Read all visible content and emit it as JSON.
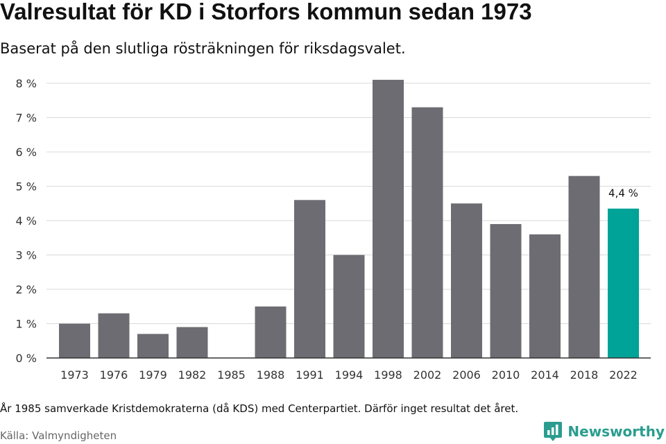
{
  "header": {
    "title": "Valresultat för KD i Storfors kommun sedan 1973",
    "subtitle": "Baserat på den slutliga rösträkningen för riksdagsvalet."
  },
  "footer": {
    "footnote": "År 1985 samverkade Kristdemokraterna (då KDS) med Centerpartiet. Därför inget resultat det året.",
    "source": "Källa: Valmyndigheten",
    "brand": "Newsworthy",
    "brand_icon": "newsworthy-logo-icon"
  },
  "colors": {
    "bar": "#6d6c72",
    "highlight": "#00a397",
    "grid": "#d9d9d9",
    "axis": "#333333",
    "brand": "#2a9d8f"
  },
  "chart_data": {
    "type": "bar",
    "title": "Valresultat för KD i Storfors kommun sedan 1973",
    "subtitle": "Baserat på den slutliga rösträkningen för riksdagsvalet.",
    "xlabel": "",
    "ylabel": "",
    "categories": [
      "1973",
      "1976",
      "1979",
      "1982",
      "1985",
      "1988",
      "1991",
      "1994",
      "1998",
      "2002",
      "2006",
      "2010",
      "2014",
      "2018",
      "2022"
    ],
    "values": [
      1.0,
      1.3,
      0.7,
      0.9,
      null,
      1.5,
      4.6,
      3.0,
      8.1,
      7.3,
      4.5,
      3.9,
      3.6,
      5.3,
      4.35
    ],
    "highlight_index": 14,
    "data_labels": [
      {
        "index": 14,
        "text": "4,4 %"
      }
    ],
    "ylim": [
      0,
      8
    ],
    "yticks": [
      0,
      1,
      2,
      3,
      4,
      5,
      6,
      7,
      8
    ],
    "ytick_labels": [
      "0 %",
      "1 %",
      "2 %",
      "3 %",
      "4 %",
      "5 %",
      "6 %",
      "7 %",
      "8 %"
    ],
    "grid": true,
    "legend": "none"
  }
}
